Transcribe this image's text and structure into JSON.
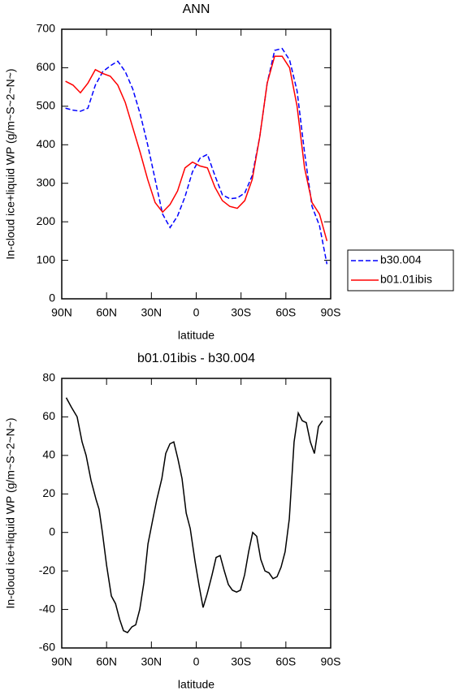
{
  "chart_data": [
    {
      "type": "line",
      "title": "ANN",
      "xlabel": "latitude",
      "ylabel": "In-cloud ice+liquid WP (g/m~S~2~N~)",
      "x": [
        87.5,
        82.5,
        77.5,
        72.5,
        67.5,
        62.5,
        57.5,
        52.5,
        47.5,
        42.5,
        37.5,
        32.5,
        27.5,
        22.5,
        17.5,
        12.5,
        7.5,
        2.5,
        -2.5,
        -7.5,
        -12.5,
        -17.5,
        -22.5,
        -27.5,
        -32.5,
        -37.5,
        -42.5,
        -47.5,
        -52.5,
        -57.5,
        -62.5,
        -67.5,
        -72.5,
        -77.5,
        -82.5,
        -87.5
      ],
      "series": [
        {
          "name": "b30.004",
          "color": "#0000ff",
          "dash": true,
          "values": [
            495,
            490,
            487,
            495,
            555,
            590,
            605,
            617,
            590,
            545,
            480,
            400,
            310,
            220,
            185,
            215,
            265,
            330,
            365,
            375,
            320,
            270,
            260,
            262,
            275,
            320,
            420,
            560,
            645,
            650,
            620,
            540,
            380,
            240,
            190,
            90
          ]
        },
        {
          "name": "b01.01ibis",
          "color": "#ff0000",
          "dash": false,
          "values": [
            565,
            555,
            535,
            560,
            595,
            585,
            578,
            555,
            510,
            445,
            380,
            310,
            250,
            225,
            245,
            280,
            340,
            355,
            345,
            340,
            290,
            255,
            240,
            235,
            255,
            310,
            420,
            560,
            630,
            630,
            600,
            500,
            340,
            250,
            220,
            150
          ]
        }
      ],
      "xlim": [
        90,
        -90
      ],
      "xticks": [
        {
          "value": 90,
          "label": "90N"
        },
        {
          "value": 60,
          "label": "60N"
        },
        {
          "value": 30,
          "label": "30N"
        },
        0,
        {
          "value": -30,
          "label": "30S"
        },
        {
          "value": -60,
          "label": "60S"
        },
        {
          "value": -90,
          "label": "90S"
        }
      ],
      "ylim": [
        0,
        700
      ],
      "yticks": [
        0,
        100,
        200,
        300,
        400,
        500,
        600,
        700
      ],
      "legend": "right"
    },
    {
      "type": "line",
      "title": "b01.01ibis - b30.004",
      "xlabel": "latitude",
      "ylabel": "In-cloud ice+liquid WP (g/m~S~2~N~)",
      "x": [
        87,
        83.5,
        79.7,
        76.4,
        73.7,
        70.4,
        67,
        65,
        62.8,
        60,
        56.8,
        54,
        51.3,
        48.7,
        46,
        43,
        40.5,
        37.8,
        35,
        32.3,
        29,
        26.4,
        23,
        20.4,
        17.6,
        15,
        12.2,
        9.5,
        6.7,
        4,
        0.8,
        -2,
        -4.6,
        -7.3,
        -10.6,
        -13.3,
        -16,
        -18.8,
        -21.5,
        -24.2,
        -27,
        -29.6,
        -32.4,
        -35.1,
        -37.8,
        -40.5,
        -43.2,
        -46,
        -48.7,
        -51.4,
        -54.1,
        -56.8,
        -59.5,
        -62.3,
        -65.5,
        -68.3,
        -71,
        -73.7,
        -76.4,
        -79.1,
        -81.8,
        -84.5
      ],
      "values": [
        70,
        65,
        60,
        47,
        40,
        27,
        17,
        12,
        0,
        -17,
        -33,
        -37,
        -45,
        -51,
        -52,
        -49,
        -48,
        -40,
        -26,
        -6,
        7,
        17,
        28,
        41,
        46,
        47,
        38,
        28,
        10,
        2,
        -15,
        -28,
        -39,
        -32,
        -22,
        -13,
        -12,
        -20,
        -27,
        -30,
        -31,
        -30,
        -22,
        -10,
        0,
        -2,
        -14,
        -20,
        -21,
        -24,
        -23,
        -18,
        -10,
        7,
        47,
        62,
        58,
        57,
        47,
        41,
        55,
        58
      ],
      "color": "#000000",
      "xlim": [
        90,
        -90
      ],
      "xticks": [
        {
          "value": 90,
          "label": "90N"
        },
        {
          "value": 60,
          "label": "60N"
        },
        {
          "value": 30,
          "label": "30N"
        },
        0,
        {
          "value": -30,
          "label": "30S"
        },
        {
          "value": -60,
          "label": "60S"
        },
        {
          "value": -90,
          "label": "90S"
        }
      ],
      "ylim": [
        -60,
        80
      ],
      "yticks": [
        -60,
        -40,
        -20,
        0,
        20,
        40,
        60,
        80
      ]
    }
  ]
}
